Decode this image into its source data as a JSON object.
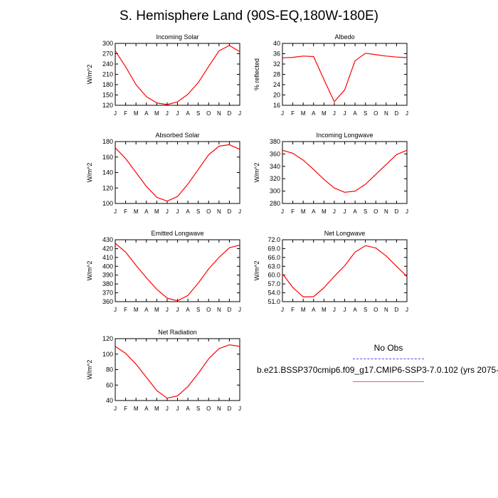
{
  "title": "S. Hemisphere Land (90S-EQ,180W-180E)",
  "legend": {
    "obs_label": "No Obs",
    "case_label": "b.e21.BSSP370cmip6.f09_g17.CMIP6-SSP3-7.0.102 (yrs 2075-",
    "obs_color": "#4a4af0",
    "model_color": "#e06060"
  },
  "chart_data": [
    {
      "type": "line",
      "title": "Incoming Solar",
      "ylabel": "W/m^2",
      "categories": [
        "J",
        "F",
        "M",
        "A",
        "M",
        "J",
        "J",
        "A",
        "S",
        "O",
        "N",
        "D",
        "J"
      ],
      "ylim": [
        120,
        300
      ],
      "yticks": [
        "120",
        "150",
        "180",
        "210",
        "240",
        "270",
        "300"
      ],
      "series": [
        {
          "color": "#ff0000",
          "values": [
            278,
            232,
            180,
            145,
            127,
            122,
            130,
            152,
            186,
            233,
            278,
            294,
            276
          ]
        }
      ]
    },
    {
      "type": "line",
      "title": "Albedo",
      "ylabel": "% reflected",
      "categories": [
        "J",
        "F",
        "M",
        "A",
        "M",
        "J",
        "J",
        "A",
        "S",
        "O",
        "N",
        "D",
        "J"
      ],
      "ylim": [
        16,
        40
      ],
      "yticks": [
        "16",
        "20",
        "24",
        "28",
        "32",
        "36",
        "40"
      ],
      "series": [
        {
          "color": "#ff0000",
          "values": [
            34.4,
            34.6,
            35.1,
            34.9,
            26.0,
            17.4,
            22.0,
            33.3,
            36.2,
            35.6,
            35.1,
            34.7,
            34.5
          ]
        }
      ]
    },
    {
      "type": "line",
      "title": "Absorbed Solar",
      "ylabel": "W/m^2",
      "categories": [
        "J",
        "F",
        "M",
        "A",
        "M",
        "J",
        "J",
        "A",
        "S",
        "O",
        "N",
        "D",
        "J"
      ],
      "ylim": [
        100,
        180
      ],
      "yticks": [
        "100",
        "120",
        "140",
        "160",
        "180"
      ],
      "series": [
        {
          "color": "#ff0000",
          "values": [
            172,
            158,
            140,
            122,
            108,
            103,
            109,
            125,
            144,
            163,
            174,
            176,
            170
          ]
        }
      ]
    },
    {
      "type": "line",
      "title": "Incoming Longwave",
      "ylabel": "W/m^2",
      "categories": [
        "J",
        "F",
        "M",
        "A",
        "M",
        "J",
        "J",
        "A",
        "S",
        "O",
        "N",
        "D",
        "J"
      ],
      "ylim": [
        280,
        380
      ],
      "yticks": [
        "280",
        "300",
        "320",
        "340",
        "360",
        "380"
      ],
      "series": [
        {
          "color": "#ff0000",
          "values": [
            366,
            361,
            350,
            335,
            319,
            305,
            298,
            300,
            311,
            327,
            343,
            359,
            366
          ]
        }
      ]
    },
    {
      "type": "line",
      "title": "Emitted Longwave",
      "ylabel": "W/m^2",
      "categories": [
        "J",
        "F",
        "M",
        "A",
        "M",
        "J",
        "J",
        "A",
        "S",
        "O",
        "N",
        "D",
        "J"
      ],
      "ylim": [
        360,
        430
      ],
      "yticks": [
        "360",
        "370",
        "380",
        "390",
        "400",
        "410",
        "420",
        "430"
      ],
      "series": [
        {
          "color": "#ff0000",
          "values": [
            426,
            416,
            401,
            387,
            374,
            364,
            361,
            367,
            381,
            397,
            410,
            421,
            424
          ]
        }
      ]
    },
    {
      "type": "line",
      "title": "Net Longwave",
      "ylabel": "W/m^2",
      "categories": [
        "J",
        "F",
        "M",
        "A",
        "M",
        "J",
        "J",
        "A",
        "S",
        "O",
        "N",
        "D",
        "J"
      ],
      "ylim": [
        51,
        72
      ],
      "yticks": [
        "51.0",
        "54.0",
        "57.0",
        "60.0",
        "63.0",
        "66.0",
        "69.0",
        "72.0"
      ],
      "series": [
        {
          "color": "#ff0000",
          "values": [
            60.5,
            55.8,
            52.6,
            52.7,
            55.7,
            59.6,
            63.2,
            67.8,
            70.0,
            69.2,
            66.5,
            63.0,
            59.5
          ]
        }
      ]
    },
    {
      "type": "line",
      "title": "Net Radiation",
      "ylabel": "W/m^2",
      "categories": [
        "J",
        "F",
        "M",
        "A",
        "M",
        "J",
        "J",
        "A",
        "S",
        "O",
        "N",
        "D",
        "J"
      ],
      "ylim": [
        40,
        120
      ],
      "yticks": [
        "40",
        "60",
        "80",
        "100",
        "120"
      ],
      "series": [
        {
          "color": "#ff0000",
          "values": [
            110,
            101,
            87,
            70,
            53,
            43,
            46,
            58,
            75,
            94,
            107,
            112,
            110
          ]
        }
      ]
    }
  ]
}
